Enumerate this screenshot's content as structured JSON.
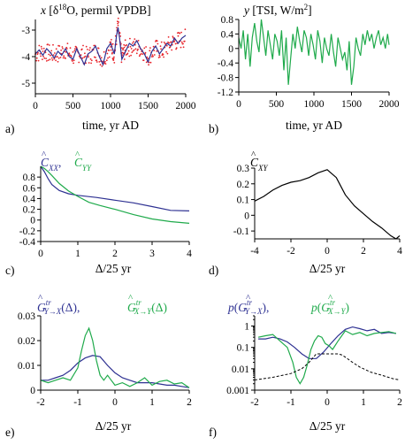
{
  "colors": {
    "blue": "#2e3192",
    "green": "#1faa4b",
    "red": "#e8232a",
    "black": "#000000"
  },
  "chart_data": [
    {
      "id": "a",
      "type": "scatter+line",
      "panel_label": "a)",
      "title": "x [δ18O, permil VPDB]",
      "xlabel": "time, yr AD",
      "ylabel": "",
      "xlim": [
        0,
        2000
      ],
      "ylim": [
        -5.4,
        -2.6
      ],
      "xticks": [
        0,
        500,
        1000,
        1500,
        2000
      ],
      "yticks": [
        -3,
        -4,
        -5
      ],
      "series": [
        {
          "kind": "dots",
          "color": "#e8232a",
          "spread": 0.35,
          "x": [
            0,
            100,
            200,
            300,
            400,
            500,
            600,
            700,
            800,
            900,
            1000,
            1050,
            1100,
            1150,
            1200,
            1300,
            1400,
            1500,
            1600,
            1700,
            1800,
            1900,
            2000
          ],
          "y": [
            -3.9,
            -3.8,
            -3.9,
            -3.9,
            -3.75,
            -4.0,
            -3.85,
            -4.0,
            -3.8,
            -4.1,
            -3.6,
            -3.9,
            -2.8,
            -4.0,
            -3.7,
            -3.6,
            -3.7,
            -4.0,
            -3.7,
            -3.8,
            -3.5,
            -3.4,
            -3.3
          ]
        },
        {
          "kind": "line",
          "color": "#2e3192",
          "x": [
            0,
            50,
            100,
            150,
            200,
            250,
            300,
            350,
            400,
            450,
            500,
            550,
            600,
            650,
            700,
            750,
            800,
            850,
            900,
            950,
            1000,
            1050,
            1080,
            1100,
            1120,
            1150,
            1200,
            1250,
            1300,
            1350,
            1400,
            1450,
            1500,
            1550,
            1600,
            1650,
            1700,
            1750,
            1800,
            1850,
            1900,
            1950,
            2000
          ],
          "y": [
            -3.9,
            -3.75,
            -3.95,
            -3.7,
            -3.85,
            -4.05,
            -3.8,
            -3.95,
            -3.7,
            -4.0,
            -4.1,
            -3.7,
            -4.0,
            -4.3,
            -3.9,
            -3.8,
            -3.6,
            -4.0,
            -4.3,
            -3.7,
            -3.5,
            -3.9,
            -3.2,
            -2.9,
            -3.3,
            -4.1,
            -3.8,
            -3.5,
            -3.6,
            -3.4,
            -3.7,
            -3.9,
            -4.2,
            -3.8,
            -3.6,
            -3.9,
            -3.7,
            -3.5,
            -3.6,
            -3.3,
            -3.5,
            -3.3,
            -3.2
          ]
        }
      ]
    },
    {
      "id": "b",
      "type": "line",
      "panel_label": "b)",
      "title": "y [TSI, W/m2]",
      "xlabel": "time, yr AD",
      "ylabel": "",
      "xlim": [
        0,
        2000
      ],
      "ylim": [
        -1.2,
        0.8
      ],
      "xticks": [
        0,
        500,
        1000,
        1500,
        2000
      ],
      "yticks": [
        0.8,
        0.4,
        0,
        -0.4,
        -0.8,
        -1.2
      ],
      "series": [
        {
          "kind": "line",
          "color": "#1faa4b",
          "x": [
            0,
            30,
            60,
            90,
            120,
            150,
            180,
            210,
            240,
            270,
            300,
            330,
            360,
            390,
            420,
            450,
            480,
            510,
            540,
            570,
            600,
            630,
            660,
            690,
            720,
            750,
            780,
            810,
            840,
            870,
            900,
            930,
            960,
            990,
            1020,
            1050,
            1080,
            1110,
            1140,
            1170,
            1200,
            1230,
            1260,
            1290,
            1320,
            1350,
            1380,
            1410,
            1440,
            1470,
            1500,
            1530,
            1560,
            1590,
            1620,
            1650,
            1680,
            1710,
            1740,
            1770,
            1800,
            1830,
            1860,
            1890,
            1920,
            1950,
            1980,
            2000
          ],
          "y": [
            0.3,
            0.0,
            0.5,
            -0.3,
            0.4,
            -0.5,
            0.3,
            0.7,
            0.2,
            -0.1,
            0.8,
            0.3,
            -0.2,
            0.5,
            0.1,
            -0.3,
            0.4,
            0.2,
            -0.2,
            0.5,
            -0.6,
            0.3,
            -1.0,
            -0.3,
            0.4,
            0.0,
            0.6,
            0.2,
            -0.1,
            0.5,
            0.3,
            -0.2,
            0.4,
            0.1,
            -0.3,
            0.5,
            0.2,
            -0.4,
            0.3,
            0.0,
            -0.2,
            0.4,
            -0.1,
            -0.5,
            0.3,
            0.0,
            -0.3,
            -0.1,
            -0.6,
            0.2,
            -1.0,
            -0.5,
            0.3,
            0.0,
            -0.2,
            0.4,
            0.1,
            0.5,
            0.2,
            0.4,
            0.0,
            0.3,
            0.5,
            0.1,
            0.3,
            0.0,
            0.4,
            0.1
          ]
        }
      ]
    },
    {
      "id": "c",
      "type": "line",
      "panel_label": "c)",
      "xlabel": "Δ/25 yr",
      "ylabel": "",
      "xlim": [
        0,
        4
      ],
      "ylim": [
        -0.4,
        1.0
      ],
      "xticks": [
        0,
        1,
        2,
        3,
        4
      ],
      "yticks": [
        0.8,
        0.6,
        0.4,
        0.2,
        0,
        -0.2,
        -0.4
      ],
      "series": [
        {
          "kind": "line",
          "color": "#2e3192",
          "x": [
            0,
            0.1,
            0.2,
            0.3,
            0.5,
            0.75,
            1.0,
            1.5,
            2.0,
            2.5,
            3.0,
            3.5,
            4.0
          ],
          "y": [
            1.0,
            0.9,
            0.77,
            0.66,
            0.55,
            0.49,
            0.46,
            0.42,
            0.37,
            0.32,
            0.25,
            0.18,
            0.17
          ]
        },
        {
          "kind": "line",
          "color": "#1faa4b",
          "x": [
            0,
            0.1,
            0.2,
            0.3,
            0.5,
            0.75,
            1.0,
            1.3,
            1.6,
            2.0,
            2.5,
            3.0,
            3.5,
            4.0
          ],
          "y": [
            1.0,
            0.96,
            0.9,
            0.83,
            0.68,
            0.54,
            0.44,
            0.33,
            0.27,
            0.2,
            0.1,
            0.02,
            -0.03,
            -0.06
          ]
        }
      ]
    },
    {
      "id": "d",
      "type": "line",
      "panel_label": "d)",
      "xlabel": "Δ/25 yr",
      "ylabel": "",
      "xlim": [
        -4,
        4
      ],
      "ylim": [
        -0.15,
        0.3
      ],
      "xticks": [
        -4,
        -2,
        0,
        2,
        4
      ],
      "yticks": [
        0.3,
        0.2,
        0.1,
        0,
        -0.1
      ],
      "series": [
        {
          "kind": "line",
          "color": "#000000",
          "x": [
            -4,
            -3.5,
            -3,
            -2.5,
            -2,
            -1.5,
            -1,
            -0.5,
            0,
            0.5,
            1,
            1.5,
            2,
            2.5,
            3,
            3.5,
            3.8,
            4
          ],
          "y": [
            0.09,
            0.12,
            0.16,
            0.19,
            0.21,
            0.22,
            0.24,
            0.27,
            0.29,
            0.24,
            0.13,
            0.06,
            0.01,
            -0.04,
            -0.08,
            -0.13,
            -0.15,
            -0.13
          ]
        }
      ]
    },
    {
      "id": "e",
      "type": "line",
      "panel_label": "e)",
      "xlabel": "Δ/25 yr",
      "ylabel": "",
      "xlim": [
        -2,
        2
      ],
      "ylim": [
        0,
        0.03
      ],
      "xticks": [
        -2,
        -1,
        0,
        1,
        2
      ],
      "yticks": [
        0.03,
        0.02,
        0.01,
        0
      ],
      "series": [
        {
          "kind": "line",
          "color": "#2e3192",
          "x": [
            -2,
            -1.8,
            -1.6,
            -1.4,
            -1.2,
            -1.0,
            -0.8,
            -0.6,
            -0.4,
            -0.2,
            0,
            0.2,
            0.4,
            0.6,
            0.8,
            1.0,
            1.2,
            1.4,
            1.6,
            1.8,
            2.0
          ],
          "y": [
            0.004,
            0.004,
            0.005,
            0.006,
            0.008,
            0.011,
            0.013,
            0.014,
            0.0135,
            0.01,
            0.007,
            0.005,
            0.004,
            0.003,
            0.003,
            0.003,
            0.0025,
            0.002,
            0.002,
            0.0015,
            0.001
          ]
        },
        {
          "kind": "line",
          "color": "#1faa4b",
          "x": [
            -2,
            -1.8,
            -1.6,
            -1.4,
            -1.2,
            -1.0,
            -0.9,
            -0.8,
            -0.7,
            -0.6,
            -0.5,
            -0.4,
            -0.3,
            -0.2,
            -0.1,
            0,
            0.2,
            0.4,
            0.6,
            0.8,
            1.0,
            1.2,
            1.4,
            1.6,
            1.8,
            2.0
          ],
          "y": [
            0.004,
            0.003,
            0.004,
            0.005,
            0.004,
            0.009,
            0.016,
            0.022,
            0.025,
            0.02,
            0.012,
            0.006,
            0.004,
            0.006,
            0.004,
            0.002,
            0.003,
            0.0015,
            0.003,
            0.005,
            0.002,
            0.0035,
            0.004,
            0.0025,
            0.003,
            0.001
          ]
        }
      ]
    },
    {
      "id": "f",
      "type": "line",
      "panel_label": "f)",
      "yscale": "log",
      "xlabel": "Δ/25 yr",
      "ylabel": "",
      "xlim": [
        -2,
        2
      ],
      "ylim": [
        0.001,
        3
      ],
      "xticks": [
        -2,
        -1,
        0,
        1,
        2
      ],
      "yticks": [
        1,
        0.1,
        0.01,
        0.001
      ],
      "ytick_labels": [
        "1",
        "0.1",
        "0.01",
        "0.001"
      ],
      "series": [
        {
          "kind": "line",
          "color": "#2e3192",
          "x": [
            -1.9,
            -1.7,
            -1.5,
            -1.3,
            -1.1,
            -0.9,
            -0.7,
            -0.5,
            -0.3,
            -0.1,
            0.1,
            0.3,
            0.5,
            0.7,
            0.9,
            1.1,
            1.3,
            1.5,
            1.7,
            1.9
          ],
          "y": [
            0.25,
            0.25,
            0.3,
            0.25,
            0.18,
            0.1,
            0.05,
            0.03,
            0.03,
            0.06,
            0.15,
            0.35,
            0.7,
            0.9,
            0.75,
            0.6,
            0.7,
            0.45,
            0.5,
            0.45
          ]
        },
        {
          "kind": "line",
          "color": "#1faa4b",
          "x": [
            -1.9,
            -1.7,
            -1.5,
            -1.3,
            -1.1,
            -0.95,
            -0.85,
            -0.75,
            -0.65,
            -0.55,
            -0.45,
            -0.35,
            -0.25,
            -0.15,
            -0.05,
            0.05,
            0.15,
            0.3,
            0.5,
            0.7,
            0.9,
            1.1,
            1.3,
            1.5,
            1.7,
            1.9
          ],
          "y": [
            0.3,
            0.35,
            0.4,
            0.2,
            0.1,
            0.02,
            0.004,
            0.002,
            0.004,
            0.015,
            0.08,
            0.2,
            0.35,
            0.3,
            0.15,
            0.12,
            0.08,
            0.2,
            0.6,
            0.4,
            0.5,
            0.35,
            0.45,
            0.5,
            0.55,
            0.45
          ]
        },
        {
          "kind": "dashed",
          "color": "#000000",
          "x": [
            -2,
            -1.5,
            -1,
            -0.7,
            -0.5,
            -0.3,
            -0.1,
            0,
            0.1,
            0.2,
            0.3,
            0.4,
            0.5,
            0.7,
            0.9,
            1.2,
            1.5,
            1.8,
            2.0
          ],
          "y": [
            0.003,
            0.004,
            0.006,
            0.01,
            0.02,
            0.05,
            0.05,
            0.05,
            0.05,
            0.05,
            0.05,
            0.045,
            0.035,
            0.02,
            0.012,
            0.007,
            0.005,
            0.0035,
            0.003
          ]
        }
      ]
    }
  ]
}
